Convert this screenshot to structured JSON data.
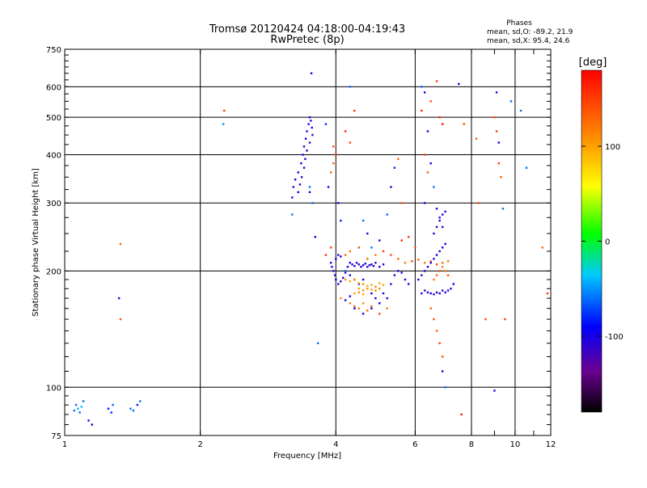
{
  "chart_data": {
    "type": "scatter",
    "title": "Tromsø 20120424 04:18:00-04:19:43",
    "subtitle": "RwPretec (8p)",
    "info": {
      "heading": "Phases",
      "line1": "mean, sd,O: -89.2, 21.9",
      "line2": "mean, sd,X:  95.4, 24.6"
    },
    "xlabel": "Frequency [MHz]",
    "ylabel": "Stationary phase Virtual Height [km]",
    "x_scale": "log",
    "y_scale": "log",
    "xlim": [
      1,
      12
    ],
    "ylim": [
      75,
      750
    ],
    "grid": true,
    "x_grid": [
      1,
      2,
      4,
      6,
      8,
      10,
      12
    ],
    "y_grid": [
      75,
      100,
      200,
      300,
      400,
      500,
      600,
      750
    ],
    "x_ticks": [
      {
        "v": 1,
        "label": "1"
      },
      {
        "v": 2,
        "label": "2"
      },
      {
        "v": 4,
        "label": "4"
      },
      {
        "v": 6,
        "label": "6"
      },
      {
        "v": 8,
        "label": "8"
      },
      {
        "v": 9,
        "label": ""
      },
      {
        "v": 10,
        "label": "10"
      },
      {
        "v": 11,
        "label": ""
      },
      {
        "v": 12,
        "label": "12"
      }
    ],
    "y_ticks": [
      {
        "v": 75,
        "label": "75"
      },
      {
        "v": 100,
        "label": "100"
      },
      {
        "v": 200,
        "label": "200"
      },
      {
        "v": 300,
        "label": "300"
      },
      {
        "v": 400,
        "label": "400"
      },
      {
        "v": 500,
        "label": "500"
      },
      {
        "v": 600,
        "label": "600"
      },
      {
        "v": 750,
        "label": "750"
      }
    ],
    "colorbar": {
      "label": "[deg]",
      "range": [
        -180,
        180
      ],
      "ticks": [
        {
          "v": 100,
          "label": "100"
        },
        {
          "v": 0,
          "label": "0"
        },
        {
          "v": -100,
          "label": "-100"
        }
      ],
      "stops": [
        "#000000",
        "#6a0090",
        "#0000ff",
        "#00c8ff",
        "#00ff00",
        "#ffff00",
        "#ff8000",
        "#ff0000"
      ]
    },
    "points": [
      [
        1.05,
        87,
        -60
      ],
      [
        1.06,
        90,
        -60
      ],
      [
        1.07,
        88,
        -40
      ],
      [
        1.08,
        86,
        -60
      ],
      [
        1.09,
        89,
        -40
      ],
      [
        1.1,
        92,
        -60
      ],
      [
        1.13,
        82,
        -100
      ],
      [
        1.15,
        80,
        -100
      ],
      [
        1.25,
        88,
        -80
      ],
      [
        1.27,
        86,
        -80
      ],
      [
        1.28,
        90,
        -60
      ],
      [
        1.4,
        88,
        -60
      ],
      [
        1.42,
        87,
        -60
      ],
      [
        1.45,
        90,
        -80
      ],
      [
        1.47,
        92,
        -60
      ],
      [
        1.32,
        170,
        -100
      ],
      [
        1.33,
        235,
        130
      ],
      [
        1.33,
        150,
        140
      ],
      [
        2.25,
        480,
        -50
      ],
      [
        2.26,
        520,
        150
      ],
      [
        3.2,
        280,
        -60
      ],
      [
        3.2,
        310,
        -100
      ],
      [
        3.22,
        330,
        -100
      ],
      [
        3.25,
        345,
        -100
      ],
      [
        3.3,
        360,
        -110
      ],
      [
        3.35,
        380,
        -100
      ],
      [
        3.38,
        400,
        -110
      ],
      [
        3.4,
        420,
        -110
      ],
      [
        3.43,
        440,
        -100
      ],
      [
        3.45,
        460,
        -110
      ],
      [
        3.48,
        480,
        -100
      ],
      [
        3.5,
        500,
        -90
      ],
      [
        3.52,
        490,
        -110
      ],
      [
        3.54,
        470,
        -100
      ],
      [
        3.55,
        450,
        -110
      ],
      [
        3.5,
        430,
        -120
      ],
      [
        3.45,
        410,
        -100
      ],
      [
        3.42,
        390,
        -110
      ],
      [
        3.4,
        370,
        -100
      ],
      [
        3.36,
        350,
        -120
      ],
      [
        3.33,
        335,
        -100
      ],
      [
        3.3,
        320,
        -110
      ],
      [
        3.5,
        320,
        -100
      ],
      [
        3.55,
        300,
        -60
      ],
      [
        3.53,
        650,
        -100
      ],
      [
        3.6,
        245,
        -100
      ],
      [
        3.65,
        130,
        -60
      ],
      [
        3.5,
        330,
        -60
      ],
      [
        3.8,
        480,
        -80
      ],
      [
        3.85,
        330,
        -100
      ],
      [
        3.9,
        360,
        130
      ],
      [
        3.95,
        380,
        130
      ],
      [
        4.0,
        400,
        150
      ],
      [
        3.95,
        420,
        140
      ],
      [
        4.05,
        300,
        -100
      ],
      [
        4.1,
        270,
        -80
      ],
      [
        4.2,
        460,
        160
      ],
      [
        4.3,
        600,
        -60
      ],
      [
        4.4,
        520,
        150
      ],
      [
        4.3,
        430,
        140
      ],
      [
        4.6,
        270,
        -60
      ],
      [
        4.7,
        250,
        -100
      ],
      [
        4.8,
        230,
        -60
      ],
      [
        5.0,
        240,
        -100
      ],
      [
        5.2,
        280,
        -60
      ],
      [
        5.3,
        330,
        -110
      ],
      [
        5.4,
        370,
        -80
      ],
      [
        5.5,
        390,
        130
      ],
      [
        5.6,
        300,
        140
      ],
      [
        3.9,
        210,
        -100
      ],
      [
        3.92,
        205,
        -110
      ],
      [
        3.95,
        200,
        -100
      ],
      [
        3.98,
        195,
        -110
      ],
      [
        4.0,
        190,
        -100
      ],
      [
        4.05,
        185,
        -110
      ],
      [
        4.1,
        188,
        -100
      ],
      [
        4.15,
        192,
        -100
      ],
      [
        4.2,
        198,
        -110
      ],
      [
        4.25,
        205,
        -100
      ],
      [
        4.3,
        210,
        -100
      ],
      [
        4.35,
        208,
        -110
      ],
      [
        4.4,
        206,
        -100
      ],
      [
        4.45,
        210,
        -100
      ],
      [
        4.5,
        208,
        -110
      ],
      [
        4.55,
        205,
        -100
      ],
      [
        4.6,
        207,
        -110
      ],
      [
        4.65,
        209,
        -100
      ],
      [
        4.7,
        205,
        -100
      ],
      [
        4.75,
        207,
        -110
      ],
      [
        4.8,
        208,
        -100
      ],
      [
        4.85,
        206,
        -100
      ],
      [
        4.9,
        210,
        -110
      ],
      [
        5.0,
        205,
        -100
      ],
      [
        5.1,
        208,
        -100
      ],
      [
        4.0,
        215,
        -100
      ],
      [
        4.05,
        220,
        -110
      ],
      [
        4.1,
        218,
        -100
      ],
      [
        4.2,
        200,
        -60
      ],
      [
        4.3,
        195,
        -100
      ],
      [
        4.4,
        190,
        -110
      ],
      [
        4.5,
        185,
        -100
      ],
      [
        4.6,
        190,
        -100
      ],
      [
        4.7,
        180,
        -110
      ],
      [
        4.8,
        175,
        -100
      ],
      [
        4.9,
        170,
        -100
      ],
      [
        5.0,
        180,
        -110
      ],
      [
        5.1,
        175,
        -100
      ],
      [
        5.2,
        170,
        -100
      ],
      [
        5.3,
        185,
        -110
      ],
      [
        5.4,
        195,
        -100
      ],
      [
        5.5,
        200,
        -100
      ],
      [
        5.6,
        198,
        -110
      ],
      [
        5.7,
        190,
        -100
      ],
      [
        5.8,
        185,
        -100
      ],
      [
        4.2,
        190,
        110
      ],
      [
        4.3,
        188,
        100
      ],
      [
        4.4,
        190,
        110
      ],
      [
        4.5,
        186,
        100
      ],
      [
        4.6,
        185,
        110
      ],
      [
        4.7,
        183,
        100
      ],
      [
        4.8,
        184,
        100
      ],
      [
        4.9,
        182,
        110
      ],
      [
        5.0,
        186,
        100
      ],
      [
        5.1,
        184,
        100
      ],
      [
        4.5,
        180,
        100
      ],
      [
        4.6,
        178,
        110
      ],
      [
        4.7,
        180,
        100
      ],
      [
        4.8,
        179,
        100
      ],
      [
        4.9,
        178,
        110
      ],
      [
        5.0,
        180,
        100
      ],
      [
        4.4,
        175,
        100
      ],
      [
        4.5,
        176,
        110
      ],
      [
        4.6,
        174,
        100
      ],
      [
        4.3,
        165,
        120
      ],
      [
        4.4,
        162,
        130
      ],
      [
        4.5,
        160,
        120
      ],
      [
        4.6,
        165,
        110
      ],
      [
        4.7,
        158,
        130
      ],
      [
        4.8,
        162,
        120
      ],
      [
        5.0,
        155,
        140
      ],
      [
        5.2,
        160,
        120
      ],
      [
        4.2,
        220,
        130
      ],
      [
        4.3,
        225,
        120
      ],
      [
        4.5,
        230,
        140
      ],
      [
        4.7,
        215,
        130
      ],
      [
        4.9,
        220,
        120
      ],
      [
        5.1,
        225,
        150
      ],
      [
        5.3,
        220,
        140
      ],
      [
        5.5,
        215,
        130
      ],
      [
        5.7,
        210,
        120
      ],
      [
        5.9,
        212,
        140
      ],
      [
        6.1,
        214,
        130
      ],
      [
        6.3,
        210,
        120
      ],
      [
        6.5,
        212,
        130
      ],
      [
        6.7,
        208,
        140
      ],
      [
        6.9,
        210,
        130
      ],
      [
        7.1,
        212,
        120
      ],
      [
        5.6,
        240,
        160
      ],
      [
        5.8,
        245,
        150
      ],
      [
        6.0,
        230,
        140
      ],
      [
        3.8,
        220,
        160
      ],
      [
        3.9,
        230,
        150
      ],
      [
        4.1,
        170,
        110
      ],
      [
        4.2,
        168,
        -100
      ],
      [
        4.3,
        172,
        -100
      ],
      [
        4.4,
        160,
        -100
      ],
      [
        4.6,
        155,
        -100
      ],
      [
        4.8,
        160,
        -100
      ],
      [
        5.0,
        165,
        -100
      ],
      [
        6.2,
        175,
        -100
      ],
      [
        6.3,
        178,
        -110
      ],
      [
        6.4,
        176,
        -100
      ],
      [
        6.5,
        175,
        -100
      ],
      [
        6.6,
        174,
        -110
      ],
      [
        6.7,
        176,
        -100
      ],
      [
        6.8,
        175,
        -100
      ],
      [
        6.9,
        178,
        -110
      ],
      [
        7.0,
        176,
        -100
      ],
      [
        7.1,
        178,
        -100
      ],
      [
        7.2,
        180,
        -110
      ],
      [
        7.3,
        185,
        -100
      ],
      [
        6.1,
        190,
        -100
      ],
      [
        6.2,
        195,
        -110
      ],
      [
        6.3,
        200,
        -100
      ],
      [
        6.4,
        205,
        -100
      ],
      [
        6.5,
        210,
        -110
      ],
      [
        6.6,
        215,
        -100
      ],
      [
        6.7,
        220,
        -100
      ],
      [
        6.8,
        225,
        -110
      ],
      [
        6.9,
        230,
        -100
      ],
      [
        7.0,
        235,
        -100
      ],
      [
        6.6,
        250,
        -100
      ],
      [
        6.7,
        260,
        -110
      ],
      [
        6.8,
        270,
        -100
      ],
      [
        6.9,
        280,
        -100
      ],
      [
        7.0,
        285,
        -110
      ],
      [
        6.7,
        290,
        -100
      ],
      [
        6.8,
        275,
        -100
      ],
      [
        6.6,
        190,
        120
      ],
      [
        6.7,
        195,
        130
      ],
      [
        6.8,
        200,
        140
      ],
      [
        6.9,
        205,
        120
      ],
      [
        7.0,
        200,
        130
      ],
      [
        7.1,
        195,
        140
      ],
      [
        6.5,
        160,
        130
      ],
      [
        6.6,
        150,
        140
      ],
      [
        6.7,
        140,
        130
      ],
      [
        6.8,
        130,
        150
      ],
      [
        6.9,
        120,
        140
      ],
      [
        6.3,
        400,
        150
      ],
      [
        6.4,
        460,
        -100
      ],
      [
        6.2,
        600,
        -60
      ],
      [
        6.3,
        580,
        -100
      ],
      [
        6.5,
        550,
        140
      ],
      [
        6.7,
        620,
        150
      ],
      [
        6.8,
        500,
        160
      ],
      [
        6.9,
        480,
        170
      ],
      [
        7.5,
        610,
        -100
      ],
      [
        7.7,
        480,
        140
      ],
      [
        6.2,
        520,
        160
      ],
      [
        6.4,
        360,
        140
      ],
      [
        6.5,
        380,
        -100
      ],
      [
        6.6,
        330,
        -60
      ],
      [
        6.3,
        300,
        -100
      ],
      [
        6.9,
        260,
        -100
      ],
      [
        7.0,
        100,
        -60
      ],
      [
        7.6,
        85,
        170
      ],
      [
        6.9,
        110,
        -100
      ],
      [
        8.2,
        440,
        130
      ],
      [
        8.3,
        300,
        140
      ],
      [
        8.6,
        150,
        140
      ],
      [
        9.1,
        580,
        -100
      ],
      [
        9.0,
        500,
        140
      ],
      [
        9.1,
        460,
        150
      ],
      [
        9.2,
        430,
        -100
      ],
      [
        9.2,
        380,
        150
      ],
      [
        9.3,
        350,
        130
      ],
      [
        9.4,
        290,
        -60
      ],
      [
        9.0,
        98,
        -100
      ],
      [
        9.5,
        150,
        150
      ],
      [
        9.8,
        550,
        -60
      ],
      [
        10.3,
        520,
        -60
      ],
      [
        10.6,
        370,
        -60
      ],
      [
        11.5,
        230,
        130
      ],
      [
        11.8,
        175,
        150
      ]
    ]
  }
}
